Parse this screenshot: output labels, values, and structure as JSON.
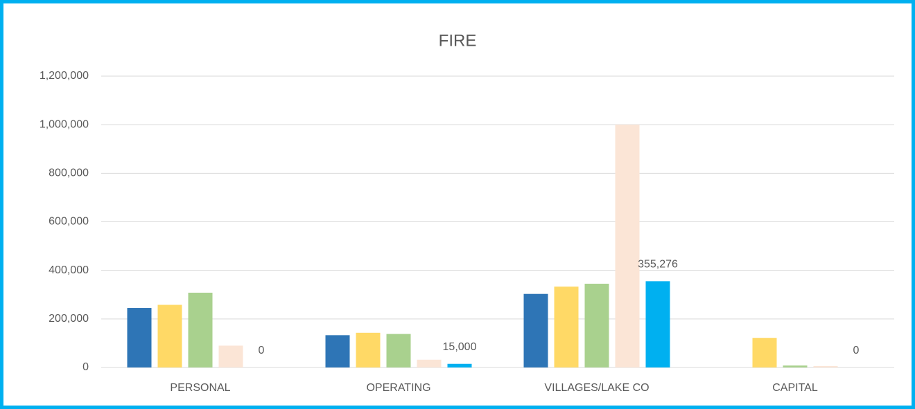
{
  "chart_data": {
    "type": "bar",
    "title": "FIRE",
    "categories": [
      "PERSONAL",
      "OPERATING",
      "VILLAGES/LAKE CO",
      "CAPITAL"
    ],
    "series": [
      {
        "color": "#2e75b6",
        "values": [
          245000,
          133000,
          303000,
          0
        ]
      },
      {
        "color": "#ffd966",
        "values": [
          258000,
          143000,
          333000,
          122000
        ]
      },
      {
        "color": "#a9d18e",
        "values": [
          308000,
          138000,
          345000,
          8000
        ]
      },
      {
        "color": "#fbe5d6",
        "values": [
          90000,
          32000,
          1000000,
          6000
        ]
      },
      {
        "color": "#00b0f0",
        "values": [
          0,
          15000,
          355276,
          0
        ],
        "value_labels": [
          "0",
          "15,000",
          "355,276",
          "0"
        ]
      }
    ],
    "ylim": [
      0,
      1200000
    ],
    "yticks": [
      0,
      {
        "value": 200000,
        "label": "200,000"
      },
      {
        "value": 400000,
        "label": "400,000"
      },
      {
        "value": 600000,
        "label": "600,000"
      },
      {
        "value": 800000,
        "label": "800,000"
      },
      {
        "value": 1000000,
        "label": "1,000,000"
      },
      {
        "value": 1200000,
        "label": "1,200,000"
      }
    ],
    "grid": true
  }
}
